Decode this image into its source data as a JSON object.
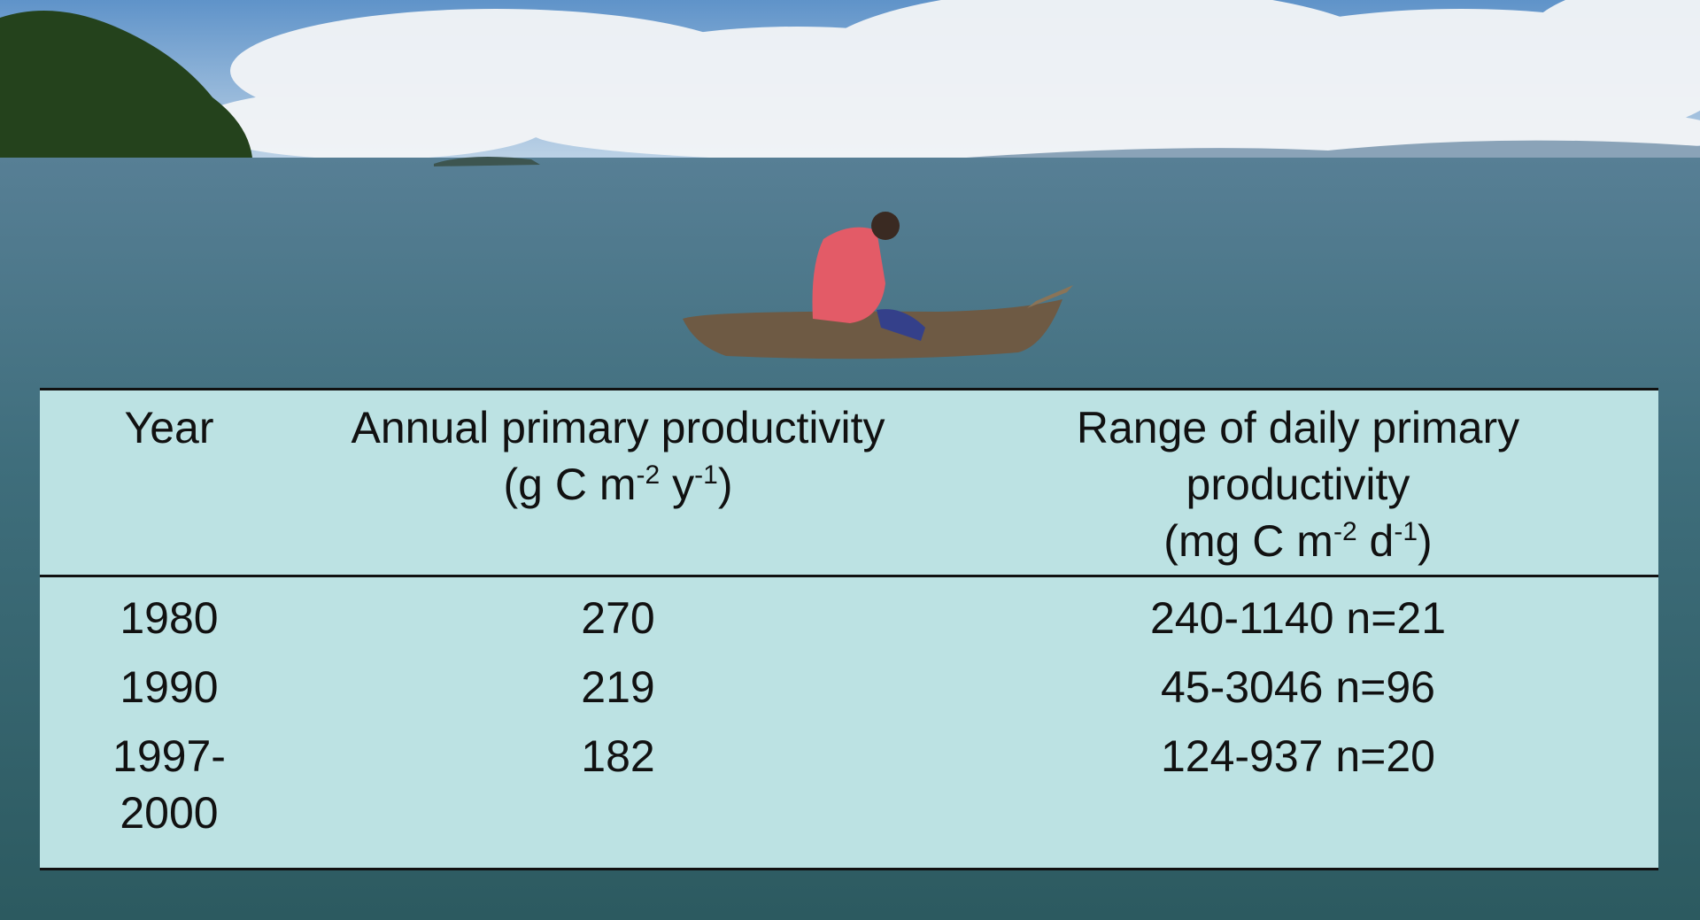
{
  "table": {
    "columns": [
      {
        "title": "Year"
      },
      {
        "title": "Annual primary productivity",
        "unit": [
          "(g C m",
          "-2",
          " y",
          "-1",
          ")"
        ]
      },
      {
        "title": "Range of daily primary productivity",
        "unit": [
          "(mg C m",
          "-2",
          " d",
          "-1",
          ")"
        ]
      }
    ],
    "rows": [
      [
        "1980",
        "270",
        "240-1140 n=21"
      ],
      [
        "1990",
        "219",
        "45-3046 n=96"
      ],
      [
        "1997-2000",
        "182",
        "124-937 n=20"
      ]
    ]
  }
}
